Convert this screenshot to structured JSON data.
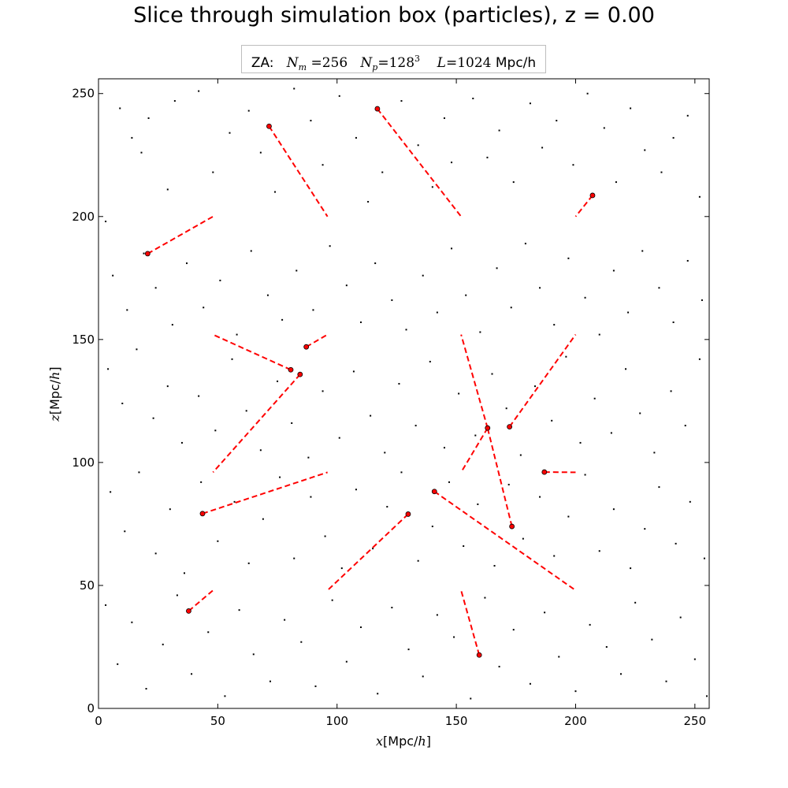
{
  "title": "Slice through simulation box (particles), z = 0.00",
  "legend": {
    "prefix": "ZA:",
    "nm_sym": "N",
    "nm_sub": "m",
    "nm_val": "256",
    "np_sym": "N",
    "np_sub": "p",
    "np_base": "128",
    "np_exp": "3",
    "l_sym": "L",
    "l_val": "1024",
    "l_unit": "Mpc/h"
  },
  "colors": {
    "particle": "#000000",
    "highlight": "#ff0000",
    "displacement": "#ff0000",
    "axes": "#000000",
    "background": "#ffffff"
  },
  "chart_data": {
    "type": "scatter",
    "title": "Slice through simulation box (particles), z = 0.00",
    "xlabel": {
      "var": "x",
      "unit": "[Mpc/",
      "unit_var": "h",
      "close": "]"
    },
    "ylabel": {
      "var": "z",
      "unit": "[Mpc/",
      "unit_var": "h",
      "close": "]"
    },
    "xlim": [
      0,
      256
    ],
    "ylim": [
      0,
      256
    ],
    "xticks": [
      0,
      50,
      100,
      150,
      200,
      250
    ],
    "yticks": [
      0,
      50,
      100,
      150,
      200,
      250
    ],
    "grid": false,
    "legend_position": "top-center",
    "series": [
      {
        "marker": "dot",
        "color": "#000000",
        "points": [
          [
            3,
            198
          ],
          [
            9,
            244
          ],
          [
            14,
            232
          ],
          [
            18,
            226
          ],
          [
            21,
            240
          ],
          [
            29,
            211
          ],
          [
            32,
            247
          ],
          [
            42,
            251
          ],
          [
            48,
            218
          ],
          [
            55,
            234
          ],
          [
            63,
            243
          ],
          [
            68,
            226
          ],
          [
            74,
            210
          ],
          [
            82,
            252
          ],
          [
            89,
            239
          ],
          [
            94,
            221
          ],
          [
            101,
            249
          ],
          [
            108,
            232
          ],
          [
            113,
            206
          ],
          [
            119,
            218
          ],
          [
            127,
            247
          ],
          [
            134,
            229
          ],
          [
            140,
            212
          ],
          [
            145,
            240
          ],
          [
            148,
            222
          ],
          [
            157,
            248
          ],
          [
            163,
            224
          ],
          [
            168,
            235
          ],
          [
            174,
            214
          ],
          [
            181,
            246
          ],
          [
            186,
            228
          ],
          [
            192,
            239
          ],
          [
            199,
            221
          ],
          [
            205,
            250
          ],
          [
            212,
            236
          ],
          [
            217,
            214
          ],
          [
            223,
            244
          ],
          [
            229,
            227
          ],
          [
            236,
            218
          ],
          [
            241,
            232
          ],
          [
            247,
            241
          ],
          [
            252,
            208
          ],
          [
            6,
            176
          ],
          [
            12,
            162
          ],
          [
            19,
            185
          ],
          [
            24,
            171
          ],
          [
            31,
            156
          ],
          [
            37,
            181
          ],
          [
            44,
            163
          ],
          [
            51,
            174
          ],
          [
            58,
            152
          ],
          [
            64,
            186
          ],
          [
            71,
            168
          ],
          [
            77,
            158
          ],
          [
            83,
            178
          ],
          [
            90,
            162
          ],
          [
            97,
            188
          ],
          [
            104,
            172
          ],
          [
            110,
            157
          ],
          [
            116,
            181
          ],
          [
            123,
            166
          ],
          [
            129,
            154
          ],
          [
            136,
            176
          ],
          [
            142,
            161
          ],
          [
            148,
            187
          ],
          [
            154,
            168
          ],
          [
            160,
            153
          ],
          [
            167,
            179
          ],
          [
            173,
            163
          ],
          [
            179,
            189
          ],
          [
            185,
            171
          ],
          [
            191,
            156
          ],
          [
            197,
            183
          ],
          [
            204,
            167
          ],
          [
            210,
            152
          ],
          [
            216,
            178
          ],
          [
            222,
            161
          ],
          [
            228,
            186
          ],
          [
            235,
            171
          ],
          [
            241,
            157
          ],
          [
            247,
            182
          ],
          [
            253,
            166
          ],
          [
            4,
            138
          ],
          [
            10,
            124
          ],
          [
            16,
            146
          ],
          [
            23,
            118
          ],
          [
            29,
            131
          ],
          [
            35,
            108
          ],
          [
            42,
            127
          ],
          [
            49,
            113
          ],
          [
            56,
            142
          ],
          [
            62,
            121
          ],
          [
            68,
            105
          ],
          [
            75,
            133
          ],
          [
            81,
            116
          ],
          [
            88,
            102
          ],
          [
            94,
            129
          ],
          [
            101,
            110
          ],
          [
            107,
            137
          ],
          [
            114,
            119
          ],
          [
            120,
            104
          ],
          [
            126,
            132
          ],
          [
            133,
            115
          ],
          [
            139,
            141
          ],
          [
            145,
            106
          ],
          [
            151,
            128
          ],
          [
            158,
            111
          ],
          [
            165,
            136
          ],
          [
            171,
            122
          ],
          [
            177,
            103
          ],
          [
            183,
            131
          ],
          [
            190,
            117
          ],
          [
            196,
            143
          ],
          [
            202,
            108
          ],
          [
            208,
            126
          ],
          [
            215,
            112
          ],
          [
            221,
            138
          ],
          [
            227,
            120
          ],
          [
            233,
            104
          ],
          [
            240,
            129
          ],
          [
            246,
            115
          ],
          [
            252,
            142
          ],
          [
            5,
            88
          ],
          [
            11,
            72
          ],
          [
            17,
            96
          ],
          [
            24,
            63
          ],
          [
            30,
            81
          ],
          [
            36,
            55
          ],
          [
            43,
            92
          ],
          [
            50,
            68
          ],
          [
            57,
            84
          ],
          [
            63,
            59
          ],
          [
            69,
            77
          ],
          [
            76,
            94
          ],
          [
            82,
            61
          ],
          [
            89,
            86
          ],
          [
            95,
            70
          ],
          [
            102,
            57
          ],
          [
            108,
            89
          ],
          [
            115,
            65
          ],
          [
            121,
            82
          ],
          [
            127,
            96
          ],
          [
            134,
            60
          ],
          [
            140,
            74
          ],
          [
            147,
            92
          ],
          [
            153,
            66
          ],
          [
            159,
            83
          ],
          [
            166,
            58
          ],
          [
            172,
            91
          ],
          [
            178,
            69
          ],
          [
            185,
            86
          ],
          [
            191,
            62
          ],
          [
            197,
            78
          ],
          [
            204,
            95
          ],
          [
            210,
            64
          ],
          [
            216,
            81
          ],
          [
            223,
            57
          ],
          [
            229,
            73
          ],
          [
            235,
            90
          ],
          [
            242,
            67
          ],
          [
            248,
            84
          ],
          [
            254,
            61
          ],
          [
            3,
            42
          ],
          [
            8,
            18
          ],
          [
            14,
            35
          ],
          [
            20,
            8
          ],
          [
            27,
            26
          ],
          [
            33,
            46
          ],
          [
            39,
            14
          ],
          [
            46,
            31
          ],
          [
            53,
            5
          ],
          [
            59,
            40
          ],
          [
            65,
            22
          ],
          [
            72,
            11
          ],
          [
            78,
            36
          ],
          [
            85,
            27
          ],
          [
            91,
            9
          ],
          [
            98,
            44
          ],
          [
            104,
            19
          ],
          [
            110,
            33
          ],
          [
            117,
            6
          ],
          [
            123,
            41
          ],
          [
            130,
            24
          ],
          [
            136,
            13
          ],
          [
            142,
            38
          ],
          [
            149,
            29
          ],
          [
            156,
            4
          ],
          [
            162,
            45
          ],
          [
            168,
            17
          ],
          [
            174,
            32
          ],
          [
            181,
            10
          ],
          [
            187,
            39
          ],
          [
            193,
            21
          ],
          [
            200,
            7
          ],
          [
            206,
            34
          ],
          [
            213,
            25
          ],
          [
            219,
            14
          ],
          [
            225,
            43
          ],
          [
            232,
            28
          ],
          [
            238,
            11
          ],
          [
            244,
            37
          ],
          [
            250,
            20
          ],
          [
            255,
            5
          ]
        ]
      },
      {
        "marker": "circle",
        "color": "#ff0000",
        "points": [
          [
            20.6,
            184.9
          ],
          [
            71.5,
            236.7
          ],
          [
            116.9,
            243.8
          ],
          [
            207.1,
            208.6
          ],
          [
            80.6,
            137.7
          ],
          [
            84.5,
            135.8
          ],
          [
            87.1,
            147.0
          ],
          [
            163.1,
            114.0
          ],
          [
            172.3,
            114.5
          ],
          [
            186.9,
            96.1
          ],
          [
            43.6,
            79.2
          ],
          [
            140.8,
            88.2
          ],
          [
            129.8,
            79.0
          ],
          [
            173.3,
            74.0
          ],
          [
            37.8,
            39.6
          ],
          [
            159.6,
            21.7
          ]
        ]
      }
    ],
    "displacement_segments": [
      [
        [
          20.6,
          184.9
        ],
        [
          48,
          200
        ]
      ],
      [
        [
          71.5,
          236.7
        ],
        [
          96,
          200
        ]
      ],
      [
        [
          116.9,
          243.8
        ],
        [
          152,
          200
        ]
      ],
      [
        [
          207.1,
          208.6
        ],
        [
          200,
          200
        ]
      ],
      [
        [
          80.6,
          137.7
        ],
        [
          48,
          152
        ]
      ],
      [
        [
          84.5,
          135.8
        ],
        [
          48,
          96
        ]
      ],
      [
        [
          87.1,
          147.0
        ],
        [
          96,
          152
        ]
      ],
      [
        [
          163.1,
          114.0
        ],
        [
          152,
          152
        ]
      ],
      [
        [
          172.3,
          114.5
        ],
        [
          200,
          152
        ]
      ],
      [
        [
          163.1,
          114.0
        ],
        [
          152,
          96
        ]
      ],
      [
        [
          186.9,
          96.1
        ],
        [
          200,
          96
        ]
      ],
      [
        [
          43.6,
          79.2
        ],
        [
          96,
          96
        ]
      ],
      [
        [
          140.8,
          88.2
        ],
        [
          200,
          48
        ]
      ],
      [
        [
          129.8,
          79.0
        ],
        [
          96,
          48
        ]
      ],
      [
        [
          173.3,
          74.0
        ],
        [
          163.1,
          114.0
        ]
      ],
      [
        [
          37.8,
          39.6
        ],
        [
          48,
          48
        ]
      ],
      [
        [
          159.6,
          21.7
        ],
        [
          152,
          48
        ]
      ]
    ]
  }
}
